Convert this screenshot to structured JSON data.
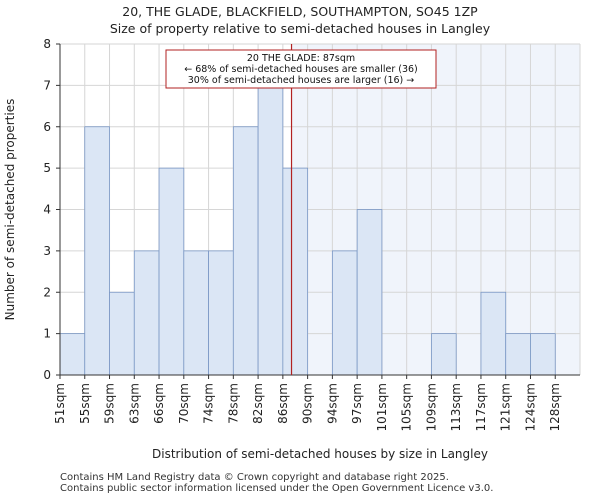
{
  "title_line1": "20, THE GLADE, BLACKFIELD, SOUTHAMPTON, SO45 1ZP",
  "title_line2": "Size of property relative to semi-detached houses in Langley",
  "footer_line1": "Contains HM Land Registry data © Crown copyright and database right 2025.",
  "footer_line2": "Contains public sector information licensed under the Open Government Licence v3.0.",
  "colors": {
    "bar_fill": "#dbe6f5",
    "bar_stroke": "#7a97c4",
    "highlight_bg": "#f0f4fb",
    "marker": "#b22222",
    "grid": "#d6d6d6"
  },
  "chart_data": {
    "type": "bar",
    "title": "Size of property relative to semi-detached houses in Langley",
    "xlabel": "Distribution of semi-detached houses by size in Langley",
    "ylabel": "Number of semi-detached properties",
    "categories": [
      "51sqm",
      "55sqm",
      "59sqm",
      "63sqm",
      "66sqm",
      "70sqm",
      "74sqm",
      "78sqm",
      "82sqm",
      "86sqm",
      "90sqm",
      "94sqm",
      "97sqm",
      "101sqm",
      "105sqm",
      "109sqm",
      "113sqm",
      "117sqm",
      "121sqm",
      "124sqm",
      "128sqm"
    ],
    "values": [
      1,
      6,
      2,
      3,
      5,
      3,
      3,
      6,
      7,
      5,
      0,
      3,
      4,
      0,
      0,
      1,
      0,
      2,
      1,
      1,
      0
    ],
    "ylim": [
      0,
      8
    ],
    "yticks": [
      0,
      1,
      2,
      3,
      4,
      5,
      6,
      7,
      8
    ],
    "grid": true,
    "marker": {
      "value_index": 9.35,
      "label_line1": "20 THE GLADE: 87sqm",
      "label_line2": "← 68% of semi-detached houses are smaller (36)",
      "label_line3": "30% of semi-detached houses are larger (16) →"
    }
  }
}
